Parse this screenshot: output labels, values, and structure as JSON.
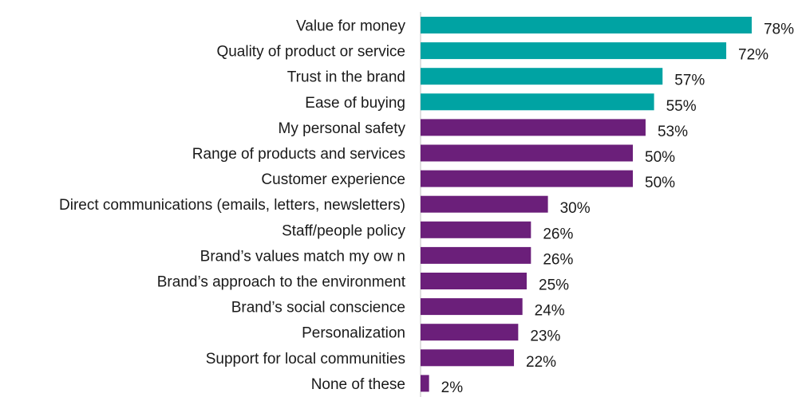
{
  "chart_data": {
    "type": "bar",
    "orientation": "horizontal",
    "title": "",
    "xlabel": "",
    "ylabel": "",
    "value_suffix": "%",
    "xlim": [
      0,
      100
    ],
    "grid": false,
    "legend": "none",
    "colors": {
      "highlight": "#00A3A3",
      "default": "#6B1F7A"
    },
    "categories": [
      "Value for money",
      "Quality of product or service",
      "Trust in the brand",
      "Ease of buying",
      "My personal safety",
      "Range of products and services",
      "Customer experience",
      "Direct communications (emails, letters, newsletters)",
      "Staff/people policy",
      "Brand’s values match my ow n",
      "Brand’s approach to the environment",
      "Brand’s social conscience",
      "Personalization",
      "Support for local communities",
      "None of these"
    ],
    "values": [
      78,
      72,
      57,
      55,
      53,
      50,
      50,
      30,
      26,
      26,
      25,
      24,
      23,
      22,
      2
    ],
    "highlighted": [
      true,
      true,
      true,
      true,
      false,
      false,
      false,
      false,
      false,
      false,
      false,
      false,
      false,
      false,
      false
    ]
  }
}
